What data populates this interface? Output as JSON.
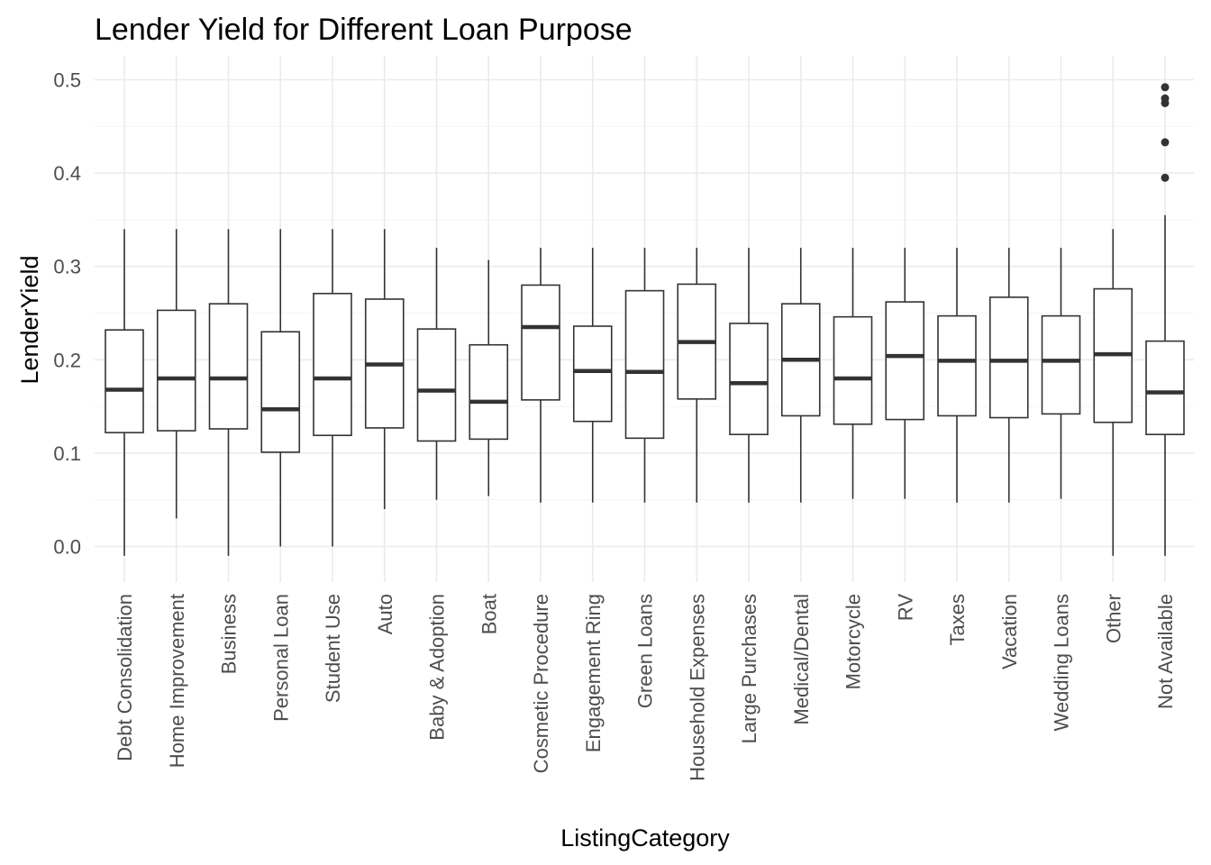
{
  "chart_data": {
    "type": "box",
    "title": "Lender Yield for Different Loan Purpose",
    "xlabel": "ListingCategory",
    "ylabel": "LenderYield",
    "ylim": [
      -0.04,
      0.52
    ],
    "yticks": [
      0.0,
      0.1,
      0.2,
      0.3,
      0.4,
      0.5
    ],
    "ytick_labels": [
      "0.0",
      "0.1",
      "0.2",
      "0.3",
      "0.4",
      "0.5"
    ],
    "grid": true,
    "colors": {
      "box_stroke": "#333333",
      "grid": "#ebebeb",
      "tick_text": "#4d4d4d"
    },
    "categories": [
      "Debt Consolidation",
      "Home Improvement",
      "Business",
      "Personal Loan",
      "Student Use",
      "Auto",
      "Baby & Adoption",
      "Boat",
      "Cosmetic Procedure",
      "Engagement Ring",
      "Green Loans",
      "Household Expenses",
      "Large Purchases",
      "Medical/Dental",
      "Motorcycle",
      "RV",
      "Taxes",
      "Vacation",
      "Wedding Loans",
      "Other",
      "Not Available"
    ],
    "boxes": [
      {
        "min": -0.01,
        "q1": 0.122,
        "median": 0.168,
        "q3": 0.232,
        "max": 0.34,
        "outliers": []
      },
      {
        "min": 0.03,
        "q1": 0.124,
        "median": 0.18,
        "q3": 0.253,
        "max": 0.34,
        "outliers": []
      },
      {
        "min": -0.01,
        "q1": 0.126,
        "median": 0.18,
        "q3": 0.26,
        "max": 0.34,
        "outliers": []
      },
      {
        "min": 0.0,
        "q1": 0.101,
        "median": 0.147,
        "q3": 0.23,
        "max": 0.34,
        "outliers": []
      },
      {
        "min": 0.0,
        "q1": 0.119,
        "median": 0.18,
        "q3": 0.271,
        "max": 0.34,
        "outliers": []
      },
      {
        "min": 0.04,
        "q1": 0.127,
        "median": 0.195,
        "q3": 0.265,
        "max": 0.34,
        "outliers": []
      },
      {
        "min": 0.05,
        "q1": 0.113,
        "median": 0.167,
        "q3": 0.233,
        "max": 0.32,
        "outliers": []
      },
      {
        "min": 0.054,
        "q1": 0.115,
        "median": 0.155,
        "q3": 0.216,
        "max": 0.307,
        "outliers": []
      },
      {
        "min": 0.047,
        "q1": 0.157,
        "median": 0.235,
        "q3": 0.28,
        "max": 0.32,
        "outliers": []
      },
      {
        "min": 0.047,
        "q1": 0.134,
        "median": 0.188,
        "q3": 0.236,
        "max": 0.32,
        "outliers": []
      },
      {
        "min": 0.047,
        "q1": 0.116,
        "median": 0.187,
        "q3": 0.274,
        "max": 0.32,
        "outliers": []
      },
      {
        "min": 0.047,
        "q1": 0.158,
        "median": 0.219,
        "q3": 0.281,
        "max": 0.32,
        "outliers": []
      },
      {
        "min": 0.047,
        "q1": 0.12,
        "median": 0.175,
        "q3": 0.239,
        "max": 0.32,
        "outliers": []
      },
      {
        "min": 0.047,
        "q1": 0.14,
        "median": 0.2,
        "q3": 0.26,
        "max": 0.32,
        "outliers": []
      },
      {
        "min": 0.051,
        "q1": 0.131,
        "median": 0.18,
        "q3": 0.246,
        "max": 0.32,
        "outliers": []
      },
      {
        "min": 0.051,
        "q1": 0.136,
        "median": 0.204,
        "q3": 0.262,
        "max": 0.32,
        "outliers": []
      },
      {
        "min": 0.047,
        "q1": 0.14,
        "median": 0.199,
        "q3": 0.247,
        "max": 0.32,
        "outliers": []
      },
      {
        "min": 0.047,
        "q1": 0.138,
        "median": 0.199,
        "q3": 0.267,
        "max": 0.32,
        "outliers": []
      },
      {
        "min": 0.051,
        "q1": 0.142,
        "median": 0.199,
        "q3": 0.247,
        "max": 0.32,
        "outliers": []
      },
      {
        "min": -0.01,
        "q1": 0.133,
        "median": 0.206,
        "q3": 0.276,
        "max": 0.34,
        "outliers": []
      },
      {
        "min": -0.01,
        "q1": 0.12,
        "median": 0.165,
        "q3": 0.22,
        "max": 0.355,
        "outliers": [
          0.395,
          0.433,
          0.475,
          0.48,
          0.492
        ]
      }
    ]
  }
}
